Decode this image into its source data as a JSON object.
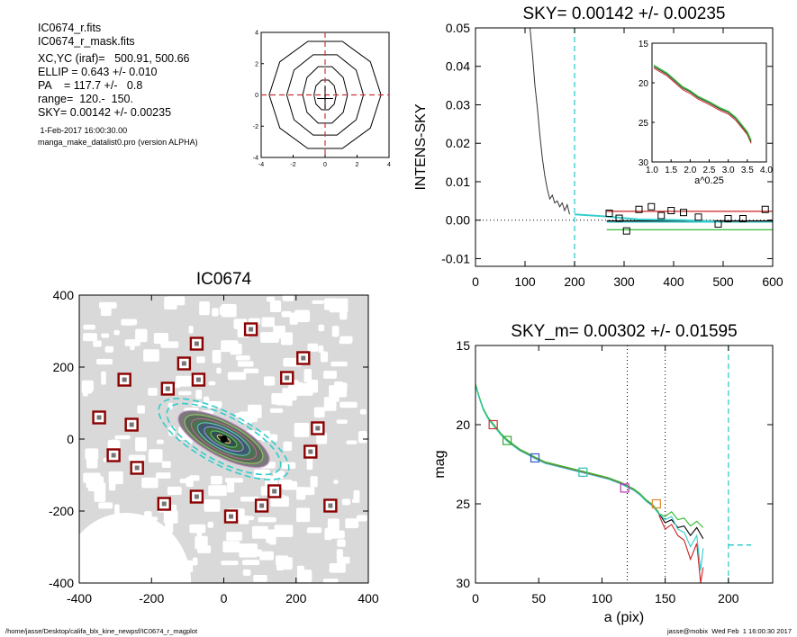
{
  "header": {
    "lines": [
      "IC0674_r.fits",
      "IC0674_r_mask.fits",
      "XC,YC (iraf)=   500.91, 500.66",
      "ELLIP = 0.643 +/- 0.010",
      "PA    = 117.7 +/-   0.8",
      "range=  120.-  150.",
      "SKY= 0.00142 +/- 0.00235"
    ],
    "date": " 1-Feb-2017 16:00:30.00",
    "program": "manga_make_datalist0.pro (version ALPHA)"
  },
  "footer": {
    "left": "/home/jasse/Desktop/califa_blx_kine_newpsf/IC0674_r_magplot",
    "right": "jasse@mobix  Wed Feb  1 16:00:30 2017"
  },
  "colors": {
    "dashed_red": "#cc3333",
    "cyan": "#33cccc",
    "green": "#33bb33",
    "red": "#cc2222",
    "box": "#8b0000"
  },
  "chart_data": [
    {
      "id": "contour",
      "type": "contour",
      "title": "",
      "xlim": [
        -4,
        4
      ],
      "ylim": [
        -4,
        4
      ],
      "xticks": [
        -4,
        -2,
        0,
        2,
        4
      ],
      "yticks": [
        -4,
        -2,
        0,
        2,
        4
      ],
      "tick_labels": [
        "-4",
        "-2",
        "0",
        "2",
        "4"
      ],
      "ellipses": [
        {
          "rx": 0.7,
          "ry": 1.0
        },
        {
          "rx": 1.4,
          "ry": 1.9
        },
        {
          "rx": 2.4,
          "ry": 2.7
        },
        {
          "rx": 3.5,
          "ry": 3.6
        }
      ]
    },
    {
      "id": "sky",
      "type": "line",
      "title": "SKY= 0.00142 +/- 0.00235",
      "ylabel": "INTENS-SKY",
      "xlim": [
        0,
        600
      ],
      "ylim": [
        -0.012,
        0.05
      ],
      "xticks": [
        0,
        100,
        200,
        300,
        400,
        500,
        600
      ],
      "xtick_labels": [
        "0",
        "100",
        "200",
        "300",
        "400",
        "500",
        "600"
      ],
      "yticks": [
        -0.01,
        0,
        0.01,
        0.02,
        0.03,
        0.04,
        0.05
      ],
      "ytick_labels": [
        "-0.01",
        "0.00",
        "0.01",
        "0.02",
        "0.03",
        "0.04",
        "0.05"
      ],
      "vline": 200,
      "profile": {
        "x": [
          110,
          115,
          120,
          125,
          130,
          135,
          140,
          145,
          150,
          155,
          160,
          165,
          170,
          175,
          180,
          185,
          190
        ],
        "y": [
          0.05,
          0.043,
          0.035,
          0.029,
          0.022,
          0.016,
          0.0115,
          0.008,
          0.0055,
          0.0065,
          0.0045,
          0.005,
          0.0035,
          0.0045,
          0.0025,
          0.004,
          0.0015
        ]
      },
      "boxes": {
        "x": [
          270,
          290,
          305,
          330,
          355,
          375,
          395,
          420,
          450,
          490,
          510,
          540,
          585
        ],
        "y": [
          0.0018,
          0.0005,
          -0.0028,
          0.0028,
          0.0035,
          0.0012,
          0.0025,
          0.002,
          0.0008,
          -0.001,
          0.0004,
          0.0004,
          0.0028
        ]
      },
      "hlines": [
        {
          "x0": 265,
          "x1": 600,
          "y": 0.0023,
          "color": "red"
        },
        {
          "x0": 265,
          "x1": 600,
          "y": -0.0025,
          "color": "green"
        },
        {
          "x0": 265,
          "x1": 600,
          "y": -0.0005,
          "color": "cyan"
        },
        {
          "x0": 265,
          "x1": 600,
          "y": -0.0002,
          "color": "black"
        }
      ],
      "inset": {
        "xlabel": "a^0.25",
        "xlim": [
          1.0,
          4.0
        ],
        "ylim": [
          15,
          30
        ],
        "xticks": [
          1.0,
          1.5,
          2.0,
          2.5,
          3.0,
          3.5,
          4.0
        ],
        "xtick_labels": [
          "1.0",
          "1.5",
          "2.0",
          "2.5",
          "3.0",
          "3.5",
          "4.0"
        ],
        "yticks": [
          15,
          20,
          25,
          30
        ],
        "ytick_labels": [
          "15",
          "20",
          "25",
          "30"
        ],
        "x": [
          1.05,
          1.4,
          1.8,
          2.0,
          2.2,
          2.5,
          2.8,
          3.0,
          3.2,
          3.35,
          3.5,
          3.6
        ],
        "y": [
          17.8,
          18.8,
          20.5,
          21.0,
          21.7,
          22.4,
          23.2,
          23.6,
          24.4,
          25.3,
          26.2,
          27.3
        ]
      }
    },
    {
      "id": "image",
      "type": "image",
      "title": "IC0674",
      "xlim": [
        -400,
        400
      ],
      "ylim": [
        -400,
        400
      ],
      "xticks": [
        -400,
        -200,
        0,
        200,
        400
      ],
      "xtick_labels": [
        "-400",
        "-200",
        "0",
        "200",
        "400"
      ],
      "yticks": [
        -400,
        -200,
        0,
        200,
        400
      ],
      "ytick_labels": [
        "-400",
        "-200",
        "0",
        "200",
        "400"
      ],
      "galaxy": {
        "pa": 117.7,
        "ellip": 0.643,
        "isophotes_a": [
          20,
          40,
          60,
          80,
          100,
          120,
          140
        ]
      },
      "sky_ellipses_a": [
        175,
        200
      ],
      "boxes": [
        {
          "x": 75,
          "y": 305
        },
        {
          "x": -75,
          "y": 265
        },
        {
          "x": -110,
          "y": 210
        },
        {
          "x": -70,
          "y": 165
        },
        {
          "x": -155,
          "y": 140
        },
        {
          "x": -275,
          "y": 165
        },
        {
          "x": 220,
          "y": 225
        },
        {
          "x": 175,
          "y": 170
        },
        {
          "x": -345,
          "y": 60
        },
        {
          "x": -255,
          "y": 40
        },
        {
          "x": 260,
          "y": 30
        },
        {
          "x": -305,
          "y": -45
        },
        {
          "x": -240,
          "y": -80
        },
        {
          "x": 240,
          "y": -35
        },
        {
          "x": 140,
          "y": -145
        },
        {
          "x": -75,
          "y": -160
        },
        {
          "x": -165,
          "y": -180
        },
        {
          "x": 105,
          "y": -185
        },
        {
          "x": 295,
          "y": -185
        },
        {
          "x": 20,
          "y": -215
        }
      ]
    },
    {
      "id": "mag",
      "type": "line",
      "title": "SKY_m=  0.00302 +/- 0.01595",
      "xlabel": "a (pix)",
      "ylabel": "mag",
      "xlim": [
        0,
        235
      ],
      "ylim": [
        15,
        30
      ],
      "xticks": [
        0,
        50,
        100,
        150,
        200
      ],
      "xtick_labels": [
        "0",
        "50",
        "100",
        "150",
        "200"
      ],
      "yticks": [
        15,
        20,
        25,
        30
      ],
      "ytick_labels": [
        "15",
        "20",
        "25",
        "30"
      ],
      "vlines_dotted": [
        120,
        150
      ],
      "vline_dashed": 200,
      "sky_level": {
        "x0": 200,
        "x1": 218,
        "y": 27.6
      },
      "profile": {
        "x": [
          0,
          3,
          6,
          10,
          14,
          20,
          25,
          30,
          35,
          40,
          47,
          55,
          65,
          75,
          85,
          95,
          105,
          115,
          120,
          125,
          130,
          135,
          140,
          145
        ],
        "y": [
          17.5,
          18.3,
          19.0,
          19.6,
          20.0,
          20.6,
          21.0,
          21.3,
          21.6,
          21.8,
          22.1,
          22.4,
          22.6,
          22.8,
          23.0,
          23.2,
          23.4,
          23.7,
          23.9,
          24.1,
          24.4,
          24.8,
          25.1,
          25.6
        ]
      },
      "tails": [
        {
          "color": "green",
          "x": [
            145,
            150,
            155,
            160,
            165,
            170,
            175,
            180
          ],
          "y": [
            25.6,
            25.8,
            25.5,
            26.0,
            25.9,
            26.4,
            26.1,
            26.5
          ]
        },
        {
          "color": "#000000",
          "x": [
            145,
            150,
            155,
            160,
            165,
            170,
            175,
            180
          ],
          "y": [
            25.6,
            26.2,
            26.0,
            26.5,
            26.4,
            27.0,
            26.5,
            27.2
          ]
        },
        {
          "color": "red",
          "x": [
            145,
            150,
            155,
            160,
            165,
            170,
            175,
            178,
            180
          ],
          "y": [
            25.7,
            26.6,
            26.3,
            27.0,
            27.3,
            28.5,
            27.5,
            30.0,
            29.0
          ]
        },
        {
          "color": "cyan",
          "x": [
            145,
            150,
            155,
            160,
            165,
            170,
            175,
            178,
            180
          ],
          "y": [
            25.6,
            26.0,
            25.8,
            26.6,
            26.8,
            27.7,
            27.0,
            29.2,
            27.8
          ]
        }
      ],
      "markers": [
        {
          "x": 14,
          "y": 20.0,
          "color": "#cc3333"
        },
        {
          "x": 25,
          "y": 21.0,
          "color": "#33aa33"
        },
        {
          "x": 47,
          "y": 22.1,
          "color": "#3355cc"
        },
        {
          "x": 85,
          "y": 23.0,
          "color": "#33bbbb"
        },
        {
          "x": 118,
          "y": 24.0,
          "color": "#bb33bb"
        },
        {
          "x": 143,
          "y": 25.0,
          "color": "#dd8833"
        }
      ]
    }
  ]
}
